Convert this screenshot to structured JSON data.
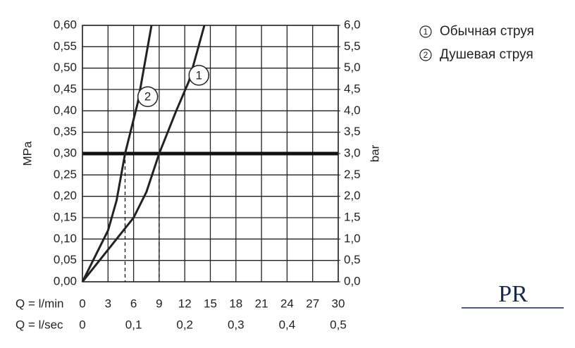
{
  "chart_data": {
    "type": "line",
    "series": [
      {
        "name": "Обычная струя",
        "label": "1",
        "color": "#222222",
        "x": [
          0,
          2,
          4,
          6,
          7.5,
          9,
          11,
          12.5,
          14.3
        ],
        "values": [
          0,
          0.05,
          0.1,
          0.15,
          0.21,
          0.3,
          0.4,
          0.47,
          0.6
        ]
      },
      {
        "name": "Душевая струя",
        "label": "2",
        "color": "#222222",
        "x": [
          0,
          1.5,
          3,
          4,
          5,
          6.5,
          8.1
        ],
        "values": [
          0,
          0.06,
          0.12,
          0.19,
          0.3,
          0.42,
          0.6
        ]
      }
    ],
    "xlabel": "Q = l/min",
    "x2label": "Q = l/sec",
    "ylabel": "MPa",
    "y2label": "bar",
    "xlim": [
      0,
      30
    ],
    "xticks": [
      0,
      3,
      6,
      9,
      12,
      15,
      18,
      21,
      24,
      27,
      30
    ],
    "x2lim": [
      0,
      0.5
    ],
    "x2ticks": [
      0,
      {
        "value": 0.1,
        "label": "0,1"
      },
      {
        "value": 0.2,
        "label": "0,2"
      },
      {
        "value": 0.3,
        "label": "0,3"
      },
      {
        "value": 0.4,
        "label": "0,4"
      },
      {
        "value": 0.5,
        "label": "0,5"
      }
    ],
    "ylim": [
      0,
      0.6
    ],
    "yticks": [
      {
        "value": 0,
        "label": "0,00"
      },
      {
        "value": 0.05,
        "label": "0,05"
      },
      {
        "value": 0.1,
        "label": "0,10"
      },
      {
        "value": 0.15,
        "label": "0,15"
      },
      {
        "value": 0.2,
        "label": "0,20"
      },
      {
        "value": 0.25,
        "label": "0,25"
      },
      {
        "value": 0.3,
        "label": "0,30"
      },
      {
        "value": 0.35,
        "label": "0,35"
      },
      {
        "value": 0.4,
        "label": "0,40"
      },
      {
        "value": 0.45,
        "label": "0,45"
      },
      {
        "value": 0.5,
        "label": "0,50"
      },
      {
        "value": 0.55,
        "label": "0,55"
      },
      {
        "value": 0.6,
        "label": "0,60"
      }
    ],
    "y2lim": [
      0,
      6
    ],
    "y2ticks": [
      {
        "value": 0,
        "label": "0,0"
      },
      {
        "value": 0.5,
        "label": "0,5"
      },
      {
        "value": 1,
        "label": "1,0"
      },
      {
        "value": 1.5,
        "label": "1,5"
      },
      {
        "value": 2,
        "label": "2,0"
      },
      {
        "value": 2.5,
        "label": "2,5"
      },
      {
        "value": 3,
        "label": "3,0"
      },
      {
        "value": 3.5,
        "label": "3,5"
      },
      {
        "value": 4,
        "label": "4,0"
      },
      {
        "value": 4.5,
        "label": "4,5"
      },
      {
        "value": 5,
        "label": "5,0"
      },
      {
        "value": 5.5,
        "label": "5,5"
      },
      {
        "value": 6,
        "label": "6,0"
      }
    ],
    "reference_y": 0.3,
    "drop_x": [
      5,
      9
    ],
    "grid": true,
    "legend": "top-right",
    "logo": "PR"
  }
}
